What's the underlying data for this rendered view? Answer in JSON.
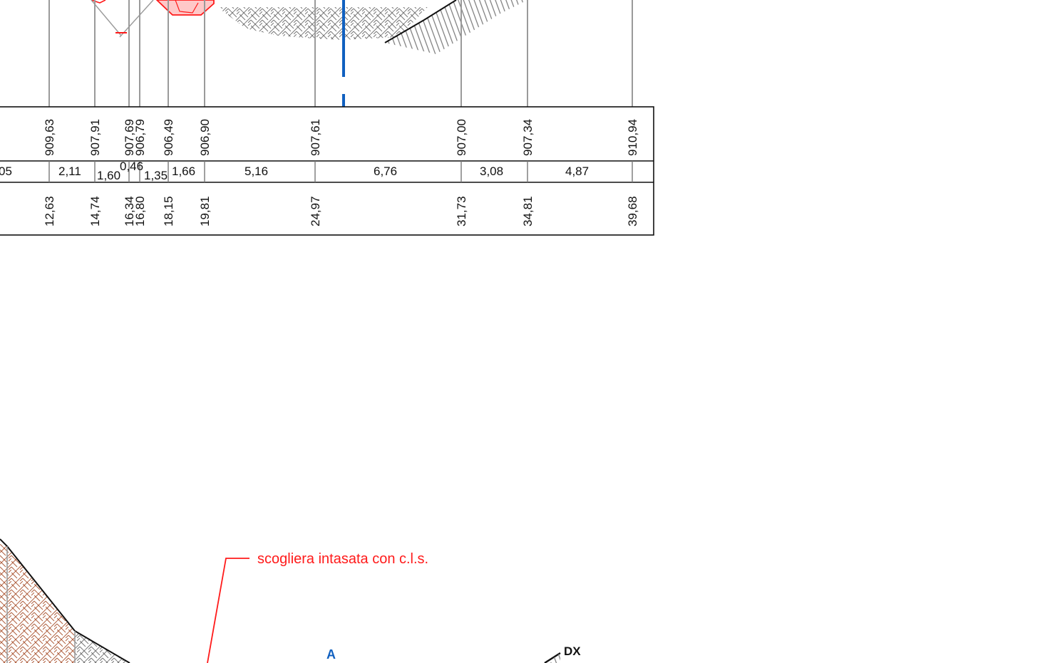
{
  "upper_section": {
    "elevations": [
      "909,63",
      "907,91",
      "907,69",
      "906,79",
      "906,49",
      "906,90",
      "907,61",
      "907,00",
      "907,34",
      "910,94"
    ],
    "partial_distances": [
      "05",
      "2,11",
      "1,60",
      "0,46",
      "1,35",
      "1,66",
      "5,16",
      "6,76",
      "3,08",
      "4,87"
    ],
    "progressive_distances": [
      "12,63",
      "14,74",
      "16,34",
      "16,80",
      "18,15",
      "19,81",
      "24,97",
      "31,73",
      "34,81",
      "39,68"
    ]
  },
  "lower_section": {
    "callout": "scogliera intasata con c.l.s.",
    "axis_label": "A",
    "side_label": "DX"
  },
  "colors": {
    "rock_fill": "#ff1a1a",
    "axis_blue": "#1060c0",
    "guide_grey": "#9a9a9a",
    "soil_brown": "#a0522d"
  }
}
